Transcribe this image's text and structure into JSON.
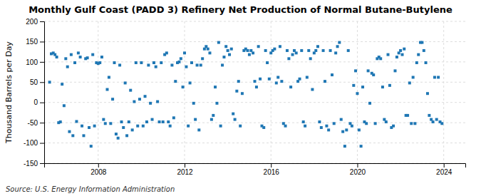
{
  "chart_data": {
    "type": "scatter",
    "title": "Monthly Gulf Coast (PADD 3) Refinery Net Production of Normal Butane-Butylene",
    "y_label": "Thousand Barrels per Day",
    "source": "Source: U.S. Energy Information Administration",
    "marker": "square",
    "grid": true,
    "xlim": [
      2005.5,
      2025.0
    ],
    "xticks": [
      2008,
      2012,
      2016,
      2020,
      2024
    ],
    "ylim": [
      -150,
      200
    ],
    "yticks": [
      -150,
      -100,
      -50,
      0,
      50,
      100,
      150,
      200
    ],
    "x": [
      2005.75,
      2005.83,
      2005.92,
      2006.0,
      2006.08,
      2006.17,
      2006.25,
      2006.33,
      2006.42,
      2006.5,
      2006.58,
      2006.67,
      2006.75,
      2006.83,
      2006.92,
      2007.0,
      2007.08,
      2007.17,
      2007.25,
      2007.33,
      2007.42,
      2007.5,
      2007.58,
      2007.67,
      2007.75,
      2007.83,
      2007.92,
      2008.0,
      2008.08,
      2008.17,
      2008.25,
      2008.33,
      2008.42,
      2008.5,
      2008.58,
      2008.67,
      2008.75,
      2008.83,
      2008.92,
      2009.0,
      2009.08,
      2009.17,
      2009.25,
      2009.33,
      2009.42,
      2009.5,
      2009.58,
      2009.67,
      2009.75,
      2009.83,
      2009.92,
      2010.0,
      2010.08,
      2010.17,
      2010.25,
      2010.33,
      2010.42,
      2010.5,
      2010.58,
      2010.67,
      2010.75,
      2010.83,
      2010.92,
      2011.0,
      2011.08,
      2011.17,
      2011.25,
      2011.33,
      2011.42,
      2011.5,
      2011.58,
      2011.67,
      2011.75,
      2011.83,
      2011.92,
      2012.0,
      2012.08,
      2012.17,
      2012.25,
      2012.33,
      2012.42,
      2012.5,
      2012.58,
      2012.67,
      2012.75,
      2012.83,
      2012.92,
      2013.0,
      2013.08,
      2013.17,
      2013.25,
      2013.33,
      2013.42,
      2013.5,
      2013.58,
      2013.67,
      2013.75,
      2013.83,
      2013.92,
      2014.0,
      2014.08,
      2014.17,
      2014.25,
      2014.33,
      2014.42,
      2014.5,
      2014.58,
      2014.67,
      2014.75,
      2014.83,
      2014.92,
      2015.0,
      2015.08,
      2015.17,
      2015.25,
      2015.33,
      2015.42,
      2015.5,
      2015.58,
      2015.67,
      2015.75,
      2015.83,
      2015.92,
      2016.0,
      2016.08,
      2016.17,
      2016.25,
      2016.33,
      2016.42,
      2016.5,
      2016.58,
      2016.67,
      2016.75,
      2016.83,
      2016.92,
      2017.0,
      2017.08,
      2017.17,
      2017.25,
      2017.33,
      2017.42,
      2017.5,
      2017.58,
      2017.67,
      2017.75,
      2017.83,
      2017.92,
      2018.0,
      2018.08,
      2018.17,
      2018.25,
      2018.33,
      2018.42,
      2018.5,
      2018.58,
      2018.67,
      2018.75,
      2018.83,
      2018.92,
      2019.0,
      2019.08,
      2019.17,
      2019.25,
      2019.33,
      2019.42,
      2019.5,
      2019.58,
      2019.67,
      2019.75,
      2019.83,
      2019.92,
      2020.0,
      2020.08,
      2020.17,
      2020.25,
      2020.33,
      2020.42,
      2020.5,
      2020.58,
      2020.67,
      2020.75,
      2020.83,
      2020.92,
      2021.0,
      2021.08,
      2021.17,
      2021.25,
      2021.33,
      2021.42,
      2021.5,
      2021.58,
      2021.67,
      2021.75,
      2021.83,
      2021.92,
      2022.0,
      2022.08,
      2022.17,
      2022.25,
      2022.33,
      2022.42,
      2022.5,
      2022.58,
      2022.67,
      2022.75,
      2022.83,
      2022.92,
      2023.0,
      2023.08,
      2023.17,
      2023.25,
      2023.33,
      2023.42,
      2023.5,
      2023.58,
      2023.67,
      2023.75,
      2023.83,
      2023.92
    ],
    "values": [
      50,
      120,
      122,
      118,
      112,
      -50,
      -48,
      45,
      -8,
      108,
      88,
      -72,
      118,
      -82,
      98,
      -47,
      122,
      112,
      -58,
      -82,
      108,
      110,
      -62,
      -108,
      118,
      -58,
      98,
      96,
      98,
      112,
      -42,
      -52,
      32,
      62,
      -52,
      8,
      98,
      -78,
      -88,
      92,
      -48,
      -62,
      48,
      -82,
      -48,
      30,
      -68,
      2,
      98,
      -58,
      8,
      98,
      -58,
      15,
      -48,
      92,
      -2,
      -42,
      98,
      88,
      2,
      -48,
      98,
      -48,
      118,
      122,
      -48,
      -58,
      92,
      -38,
      52,
      98,
      100,
      108,
      38,
      122,
      88,
      -58,
      48,
      98,
      -2,
      -42,
      92,
      -68,
      92,
      108,
      132,
      138,
      132,
      122,
      -42,
      -32,
      38,
      -2,
      148,
      -58,
      92,
      112,
      138,
      128,
      118,
      132,
      -28,
      -42,
      28,
      52,
      -58,
      22,
      128,
      132,
      128,
      118,
      128,
      122,
      52,
      38,
      138,
      58,
      -58,
      -62,
      128,
      98,
      58,
      122,
      128,
      132,
      48,
      62,
      138,
      52,
      -52,
      -58,
      128,
      108,
      38,
      118,
      128,
      122,
      52,
      58,
      128,
      -48,
      -58,
      62,
      128,
      108,
      32,
      122,
      128,
      138,
      -48,
      -62,
      128,
      52,
      -58,
      -68,
      128,
      68,
      -52,
      122,
      138,
      148,
      -42,
      -72,
      -108,
      -68,
      128,
      -52,
      -58,
      42,
      78,
      22,
      -68,
      -108,
      38,
      -48,
      -52,
      78,
      -2,
      72,
      68,
      -52,
      108,
      112,
      108,
      38,
      -42,
      -48,
      118,
      42,
      -62,
      -58,
      78,
      112,
      122,
      128,
      118,
      132,
      -32,
      -32,
      48,
      -52,
      62,
      -52,
      98,
      118,
      148,
      148,
      128,
      98,
      22,
      -32,
      -42,
      -48,
      62,
      -42,
      62,
      -48,
      -52
    ]
  }
}
